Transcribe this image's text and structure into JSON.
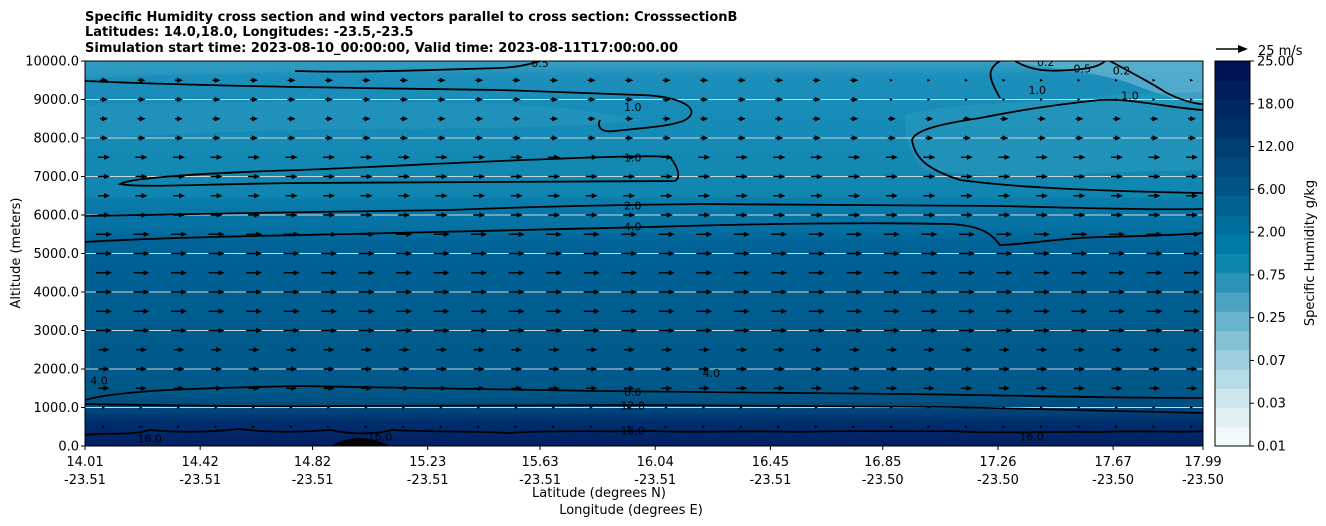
{
  "chart_data": {
    "type": "contourf",
    "title_lines": [
      "Specific Humidity cross section and wind vectors parallel to cross section: CrosssectionB",
      "Latitudes: 14.0,18.0, Longitudes: -23.5,-23.5",
      "Simulation start time: 2023-08-10_00:00:00, Valid time: 2023-08-11T17:00:00.00"
    ],
    "ylabel": "Altitude (meters)",
    "xlabel_lat": "Latitude (degrees N)",
    "xlabel_lon": "Longitude (degrees E)",
    "ylim": [
      0,
      10000
    ],
    "y_ticks": [
      {
        "value": 0,
        "label": "0.0"
      },
      {
        "value": 1000,
        "label": "1000.0"
      },
      {
        "value": 2000,
        "label": "2000.0"
      },
      {
        "value": 3000,
        "label": "3000.0"
      },
      {
        "value": 4000,
        "label": "4000.0"
      },
      {
        "value": 5000,
        "label": "5000.0"
      },
      {
        "value": 6000,
        "label": "6000.0"
      },
      {
        "value": 7000,
        "label": "7000.0"
      },
      {
        "value": 8000,
        "label": "8000.0"
      },
      {
        "value": 9000,
        "label": "9000.0"
      },
      {
        "value": 10000,
        "label": "10000.0"
      }
    ],
    "x_ticks": [
      {
        "lat": "14.01",
        "lon": "-23.51"
      },
      {
        "lat": "14.42",
        "lon": "-23.51"
      },
      {
        "lat": "14.82",
        "lon": "-23.51"
      },
      {
        "lat": "15.23",
        "lon": "-23.51"
      },
      {
        "lat": "15.63",
        "lon": "-23.51"
      },
      {
        "lat": "16.04",
        "lon": "-23.51"
      },
      {
        "lat": "16.45",
        "lon": "-23.51"
      },
      {
        "lat": "16.85",
        "lon": "-23.50"
      },
      {
        "lat": "17.26",
        "lon": "-23.50"
      },
      {
        "lat": "17.67",
        "lon": "-23.50"
      },
      {
        "lat": "17.99",
        "lon": "-23.50"
      }
    ],
    "xlim": [
      14.01,
      17.99
    ],
    "colorbar": {
      "label": "Specific Humidity g/kg",
      "tick_labels": [
        "0.01",
        "0.03",
        "0.07",
        "0.25",
        "0.75",
        "2.00",
        "6.00",
        "12.00",
        "18.00",
        "25.00"
      ],
      "colors": [
        "#f2f9fb",
        "#e1f0f4",
        "#cde6ee",
        "#b5dbe6",
        "#9dcfde",
        "#83c1d5",
        "#68b3cc",
        "#4aa3c2",
        "#2b93b7",
        "#0f86b0",
        "#007aa7",
        "#006e9c",
        "#006291",
        "#005586",
        "#004a7d",
        "#003e73",
        "#00326a",
        "#002865",
        "#001d5e",
        "#001356"
      ]
    },
    "humidity_layers": [
      {
        "from_alt": 0,
        "to_alt": 1000,
        "approx_value": 16.0
      },
      {
        "from_alt": 1000,
        "to_alt": 5300,
        "approx_value": 6.0
      },
      {
        "from_alt": 5300,
        "to_alt": 6000,
        "approx_value": 3.0
      },
      {
        "from_alt": 6000,
        "to_alt": 9500,
        "approx_value": 1.5
      },
      {
        "from_alt": 9500,
        "to_alt": 10000,
        "approx_value": 0.5
      }
    ],
    "contour_levels": [
      0.2,
      0.5,
      1.0,
      2.0,
      4.0,
      8.0,
      12.0,
      16.0
    ],
    "contour_labels": [
      {
        "text": "0.5",
        "lat": 15.63,
        "alt": 9950
      },
      {
        "text": "0.2",
        "lat": 17.43,
        "alt": 9980
      },
      {
        "text": "0.5",
        "lat": 17.56,
        "alt": 9800
      },
      {
        "text": "0.2",
        "lat": 17.7,
        "alt": 9750
      },
      {
        "text": "1.0",
        "lat": 17.73,
        "alt": 9100
      },
      {
        "text": "1.0",
        "lat": 17.4,
        "alt": 9250
      },
      {
        "text": "1.0",
        "lat": 15.96,
        "alt": 8800
      },
      {
        "text": "1.0",
        "lat": 15.96,
        "alt": 7500
      },
      {
        "text": "2.0",
        "lat": 15.96,
        "alt": 6250
      },
      {
        "text": "4.0",
        "lat": 15.96,
        "alt": 5700
      },
      {
        "text": "4.0",
        "lat": 16.24,
        "alt": 1900
      },
      {
        "text": "4.0",
        "lat": 14.06,
        "alt": 1700
      },
      {
        "text": "8.0",
        "lat": 15.96,
        "alt": 1400
      },
      {
        "text": "12.0",
        "lat": 15.96,
        "alt": 1050
      },
      {
        "text": "16.0",
        "lat": 15.96,
        "alt": 400
      },
      {
        "text": "16.0",
        "lat": 14.24,
        "alt": 200
      },
      {
        "text": "16.0",
        "lat": 15.06,
        "alt": 250
      },
      {
        "text": "16.0",
        "lat": 17.38,
        "alt": 250
      }
    ],
    "wind_key": {
      "label": "25 m/s",
      "speed": 25
    },
    "wind_vectors": {
      "direction": "parallel, towards increasing latitude",
      "typical_speed_ms": 10
    }
  }
}
